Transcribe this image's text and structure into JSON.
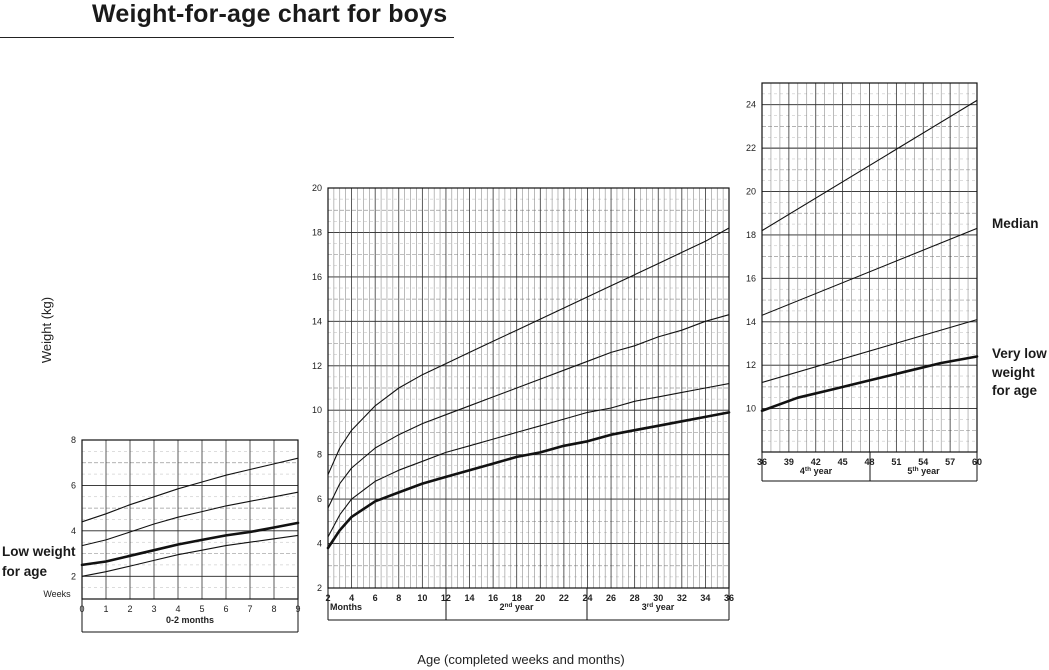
{
  "title": "Weight-for-age chart for boys",
  "chart_data": [
    {
      "type": "line",
      "period": "0-2 months",
      "x_unit_label": "Weeks",
      "x_ticks": [
        0,
        1,
        2,
        3,
        4,
        5,
        6,
        7,
        8,
        9
      ],
      "xlim": [
        0,
        9
      ],
      "y_ticks": [
        2,
        4,
        6,
        8
      ],
      "ylim": [
        1,
        8
      ],
      "series": [
        {
          "x": [
            0,
            1,
            2,
            3,
            4,
            5,
            6,
            7,
            8,
            9
          ],
          "y": [
            4.4,
            4.75,
            5.15,
            5.5,
            5.85,
            6.15,
            6.45,
            6.7,
            6.95,
            7.2
          ]
        },
        {
          "x": [
            0,
            1,
            2,
            3,
            4,
            5,
            6,
            7,
            8,
            9
          ],
          "y": [
            3.35,
            3.6,
            3.95,
            4.3,
            4.6,
            4.85,
            5.1,
            5.3,
            5.5,
            5.7
          ]
        },
        {
          "x": [
            0,
            1,
            2,
            3,
            4,
            5,
            6,
            7,
            8,
            9
          ],
          "y": [
            2.5,
            2.65,
            2.9,
            3.15,
            3.4,
            3.6,
            3.8,
            3.95,
            4.15,
            4.35
          ],
          "bold": true
        },
        {
          "x": [
            0,
            1,
            2,
            3,
            4,
            5,
            6,
            7,
            8,
            9
          ],
          "y": [
            2.0,
            2.2,
            2.45,
            2.7,
            2.95,
            3.15,
            3.35,
            3.5,
            3.65,
            3.8
          ]
        }
      ]
    },
    {
      "type": "line",
      "period": "2-36 months",
      "x_unit_label": "Months",
      "x_ticks": [
        2,
        4,
        6,
        8,
        10,
        12,
        14,
        16,
        18,
        20,
        22,
        24,
        26,
        28,
        30,
        32,
        34,
        36
      ],
      "xlim": [
        2,
        36
      ],
      "y_ticks": [
        2,
        4,
        6,
        8,
        10,
        12,
        14,
        16,
        18,
        20
      ],
      "ylim": [
        2,
        20
      ],
      "year_labels": [
        {
          "num": "2",
          "sup": "nd",
          "text": " year"
        },
        {
          "num": "3",
          "sup": "rd",
          "text": " year"
        }
      ],
      "series": [
        {
          "x": [
            2,
            3,
            4,
            6,
            8,
            10,
            12,
            14,
            16,
            18,
            20,
            22,
            24,
            26,
            28,
            30,
            32,
            34,
            36
          ],
          "y": [
            7.1,
            8.3,
            9.1,
            10.2,
            11.0,
            11.6,
            12.1,
            12.6,
            13.1,
            13.6,
            14.1,
            14.6,
            15.1,
            15.6,
            16.1,
            16.6,
            17.1,
            17.6,
            18.2
          ]
        },
        {
          "x": [
            2,
            3,
            4,
            6,
            8,
            10,
            12,
            14,
            16,
            18,
            20,
            22,
            24,
            26,
            28,
            30,
            32,
            34,
            36
          ],
          "y": [
            5.6,
            6.7,
            7.4,
            8.3,
            8.9,
            9.4,
            9.8,
            10.2,
            10.6,
            11.0,
            11.4,
            11.8,
            12.2,
            12.6,
            12.9,
            13.3,
            13.6,
            14.0,
            14.3
          ]
        },
        {
          "x": [
            2,
            3,
            4,
            6,
            8,
            10,
            12,
            14,
            16,
            18,
            20,
            22,
            24,
            26,
            28,
            30,
            32,
            34,
            36
          ],
          "y": [
            4.3,
            5.3,
            6.0,
            6.8,
            7.3,
            7.7,
            8.1,
            8.4,
            8.7,
            9.0,
            9.3,
            9.6,
            9.9,
            10.1,
            10.4,
            10.6,
            10.8,
            11.0,
            11.2
          ]
        },
        {
          "x": [
            2,
            3,
            4,
            6,
            8,
            10,
            12,
            14,
            16,
            18,
            20,
            22,
            24,
            26,
            28,
            30,
            32,
            34,
            36
          ],
          "y": [
            3.8,
            4.6,
            5.2,
            5.9,
            6.3,
            6.7,
            7.0,
            7.3,
            7.6,
            7.9,
            8.1,
            8.4,
            8.6,
            8.9,
            9.1,
            9.3,
            9.5,
            9.7,
            9.9
          ],
          "bold": true
        }
      ]
    },
    {
      "type": "line",
      "period": "36-60 months",
      "x_ticks": [
        36,
        39,
        42,
        45,
        48,
        51,
        54,
        57,
        60
      ],
      "xlim": [
        36,
        60
      ],
      "y_ticks": [
        10,
        12,
        14,
        16,
        18,
        20,
        22,
        24
      ],
      "ylim": [
        8,
        25
      ],
      "year_labels": [
        {
          "num": "4",
          "sup": "th",
          "text": " year"
        },
        {
          "num": "5",
          "sup": "th",
          "text": " year"
        }
      ],
      "series": [
        {
          "x": [
            36,
            60
          ],
          "y": [
            18.2,
            24.2
          ]
        },
        {
          "x": [
            36,
            60
          ],
          "y": [
            14.3,
            18.3
          ]
        },
        {
          "x": [
            36,
            60
          ],
          "y": [
            11.2,
            14.1
          ]
        },
        {
          "x": [
            36,
            40,
            44,
            48,
            52,
            56,
            60
          ],
          "y": [
            9.9,
            10.5,
            10.9,
            11.3,
            11.7,
            12.1,
            12.4
          ],
          "bold": true
        }
      ]
    }
  ],
  "labels": {
    "ylabel": "Weight (kg)",
    "xlabel": "Age (completed weeks and months)",
    "low_weight": [
      "Low weight",
      "for age"
    ],
    "median": "Median",
    "very_low_weight": [
      "Very low",
      "weight",
      "for age"
    ]
  }
}
